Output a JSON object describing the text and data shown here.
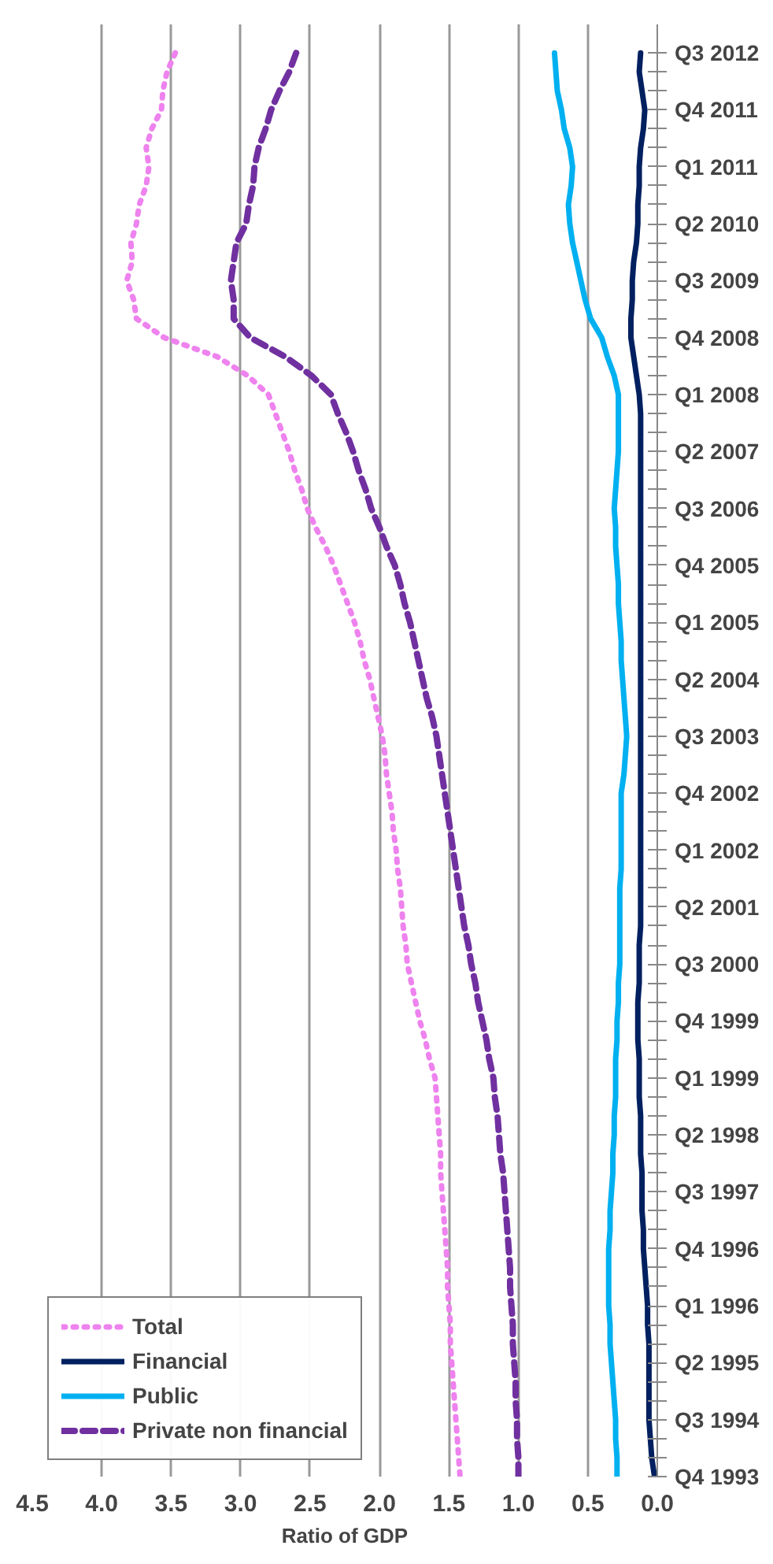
{
  "chart_data": {
    "type": "line",
    "orientation": "horizontal",
    "xlabel": "Ratio of GDP",
    "categories": [
      "Q3 2012",
      null,
      null,
      "Q4 2011",
      null,
      null,
      "Q1 2011",
      null,
      null,
      "Q2 2010",
      null,
      null,
      "Q3 2009",
      null,
      null,
      "Q4 2008",
      null,
      null,
      "Q1 2008",
      null,
      null,
      "Q2 2007",
      null,
      null,
      "Q3 2006",
      null,
      null,
      "Q4 2005",
      null,
      null,
      "Q1 2005",
      null,
      null,
      "Q2 2004",
      null,
      null,
      "Q3 2003",
      null,
      null,
      "Q4 2002",
      null,
      null,
      "Q1 2002",
      null,
      null,
      "Q2 2001",
      null,
      null,
      "Q3 2000",
      null,
      null,
      "Q4 1999",
      null,
      null,
      "Q1 1999",
      null,
      null,
      "Q2 1998",
      null,
      null,
      "Q3 1997",
      null,
      null,
      "Q4 1996",
      null,
      null,
      "Q1 1996",
      null,
      null,
      "Q2 1995",
      null,
      null,
      "Q3 1994",
      null,
      null,
      "Q4 1993"
    ],
    "series": [
      {
        "name": "Total",
        "color": "#ee82ee",
        "line_style": "dotted",
        "values": [
          3.47,
          3.53,
          3.56,
          3.57,
          3.64,
          3.68,
          3.66,
          3.68,
          3.73,
          3.75,
          3.79,
          3.78,
          3.82,
          3.77,
          3.75,
          3.55,
          3.17,
          2.95,
          2.8,
          2.75,
          2.7,
          2.65,
          2.61,
          2.56,
          2.52,
          2.46,
          2.39,
          2.33,
          2.28,
          2.23,
          2.18,
          2.14,
          2.11,
          2.07,
          2.04,
          2.01,
          1.98,
          1.96,
          1.95,
          1.93,
          1.91,
          1.9,
          1.88,
          1.87,
          1.85,
          1.84,
          1.83,
          1.81,
          1.8,
          1.77,
          1.74,
          1.71,
          1.67,
          1.64,
          1.6,
          1.59,
          1.58,
          1.57,
          1.56,
          1.56,
          1.55,
          1.54,
          1.53,
          1.52,
          1.51,
          1.51,
          1.5,
          1.49,
          1.49,
          1.48,
          1.47,
          1.46,
          1.45,
          1.44,
          1.43,
          1.42
        ]
      },
      {
        "name": "Financial",
        "color": "#002060",
        "line_style": "solid",
        "values": [
          0.12,
          0.13,
          0.11,
          0.09,
          0.1,
          0.12,
          0.13,
          0.13,
          0.14,
          0.14,
          0.15,
          0.17,
          0.18,
          0.18,
          0.19,
          0.19,
          0.17,
          0.15,
          0.13,
          0.12,
          0.12,
          0.12,
          0.12,
          0.12,
          0.12,
          0.12,
          0.12,
          0.12,
          0.12,
          0.12,
          0.12,
          0.12,
          0.12,
          0.12,
          0.12,
          0.12,
          0.12,
          0.12,
          0.12,
          0.12,
          0.12,
          0.12,
          0.12,
          0.12,
          0.12,
          0.12,
          0.12,
          0.13,
          0.13,
          0.13,
          0.14,
          0.14,
          0.14,
          0.13,
          0.13,
          0.13,
          0.12,
          0.12,
          0.12,
          0.11,
          0.11,
          0.11,
          0.1,
          0.1,
          0.09,
          0.08,
          0.07,
          0.07,
          0.06,
          0.06,
          0.06,
          0.06,
          0.06,
          0.05,
          0.04,
          0.02
        ]
      },
      {
        "name": "Public",
        "color": "#00b0f0",
        "line_style": "solid",
        "values": [
          0.74,
          0.73,
          0.72,
          0.69,
          0.67,
          0.63,
          0.61,
          0.62,
          0.64,
          0.63,
          0.61,
          0.58,
          0.55,
          0.52,
          0.48,
          0.4,
          0.36,
          0.31,
          0.28,
          0.28,
          0.28,
          0.28,
          0.29,
          0.3,
          0.31,
          0.3,
          0.3,
          0.29,
          0.28,
          0.28,
          0.27,
          0.26,
          0.26,
          0.25,
          0.24,
          0.23,
          0.22,
          0.23,
          0.24,
          0.26,
          0.26,
          0.26,
          0.26,
          0.26,
          0.27,
          0.27,
          0.27,
          0.27,
          0.27,
          0.28,
          0.28,
          0.29,
          0.29,
          0.3,
          0.3,
          0.3,
          0.31,
          0.31,
          0.32,
          0.32,
          0.33,
          0.34,
          0.34,
          0.35,
          0.35,
          0.35,
          0.35,
          0.34,
          0.34,
          0.33,
          0.32,
          0.31,
          0.3,
          0.3,
          0.29,
          0.29
        ]
      },
      {
        "name": "Private non financial",
        "color": "#7030a0",
        "line_style": "dashed",
        "values": [
          2.6,
          2.65,
          2.72,
          2.78,
          2.82,
          2.87,
          2.9,
          2.91,
          2.94,
          2.96,
          3.03,
          3.05,
          3.07,
          3.05,
          3.05,
          2.93,
          2.68,
          2.49,
          2.35,
          2.3,
          2.24,
          2.19,
          2.15,
          2.1,
          2.06,
          2.0,
          1.95,
          1.89,
          1.85,
          1.82,
          1.78,
          1.75,
          1.72,
          1.69,
          1.66,
          1.62,
          1.59,
          1.57,
          1.55,
          1.53,
          1.51,
          1.49,
          1.47,
          1.45,
          1.43,
          1.41,
          1.39,
          1.36,
          1.34,
          1.31,
          1.29,
          1.26,
          1.23,
          1.21,
          1.18,
          1.17,
          1.15,
          1.14,
          1.13,
          1.11,
          1.1,
          1.09,
          1.08,
          1.07,
          1.06,
          1.06,
          1.05,
          1.04,
          1.04,
          1.03,
          1.02,
          1.02,
          1.01,
          1.01,
          1.0,
          1.0
        ]
      }
    ],
    "xlim": [
      4.5,
      0
    ],
    "xticks": [
      {
        "value": 4.5,
        "label": "4.5"
      },
      {
        "value": 4,
        "label": "4.0"
      },
      {
        "value": 3.5,
        "label": "3.5"
      },
      {
        "value": 3,
        "label": "3.0"
      },
      {
        "value": 2.5,
        "label": "2.5"
      },
      {
        "value": 2,
        "label": "2.0"
      },
      {
        "value": 1.5,
        "label": "1.5"
      },
      {
        "value": 1,
        "label": "1.0"
      },
      {
        "value": 0.5,
        "label": "0.5"
      },
      {
        "value": 0,
        "label": "0.0"
      }
    ],
    "grid": "x",
    "legend": "bottom left"
  }
}
